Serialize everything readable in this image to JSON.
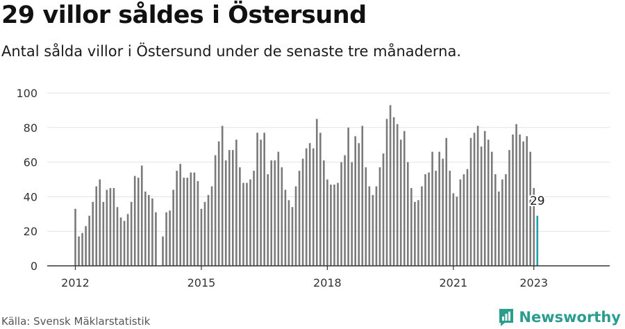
{
  "title": "29 villor såldes i Östersund",
  "subtitle": "Antal sålda villor i Östersund under de senaste tre månaderna.",
  "source": "Källa: Svensk Mäklarstatistik",
  "brand": "Newsworthy",
  "colors": {
    "bar": "#7a7a7a",
    "highlight": "#1aa1ac",
    "grid": "#e2e2e2",
    "axis": "#333333",
    "brand": "#2a9d8f"
  },
  "chart_data": {
    "type": "bar",
    "ylim": [
      0,
      100
    ],
    "yticks": [
      0,
      20,
      40,
      60,
      80,
      100
    ],
    "xtick_labels": [
      "2012",
      "2015",
      "2018",
      "2021",
      "2023"
    ],
    "xtick_indices": [
      0,
      36,
      72,
      108,
      131
    ],
    "grid": true,
    "highlight_label": "29",
    "values": [
      33,
      17,
      19,
      23,
      29,
      37,
      46,
      50,
      37,
      44,
      45,
      45,
      34,
      28,
      26,
      30,
      37,
      52,
      51,
      58,
      43,
      41,
      39,
      31,
      0,
      17,
      31,
      32,
      44,
      55,
      59,
      51,
      51,
      54,
      54,
      49,
      33,
      37,
      41,
      46,
      64,
      72,
      81,
      61,
      67,
      67,
      73,
      57,
      48,
      48,
      50,
      55,
      77,
      73,
      77,
      53,
      61,
      61,
      66,
      57,
      44,
      38,
      34,
      46,
      55,
      62,
      68,
      71,
      68,
      85,
      77,
      61,
      50,
      47,
      47,
      48,
      60,
      64,
      80,
      60,
      75,
      71,
      81,
      57,
      46,
      41,
      46,
      57,
      65,
      85,
      93,
      86,
      82,
      73,
      78,
      60,
      45,
      37,
      38,
      46,
      53,
      54,
      66,
      55,
      66,
      62,
      74,
      55,
      42,
      40,
      50,
      53,
      56,
      74,
      77,
      81,
      69,
      78,
      73,
      66,
      53,
      43,
      50,
      53,
      67,
      76,
      82,
      76,
      72,
      75,
      66,
      45,
      29
    ]
  }
}
